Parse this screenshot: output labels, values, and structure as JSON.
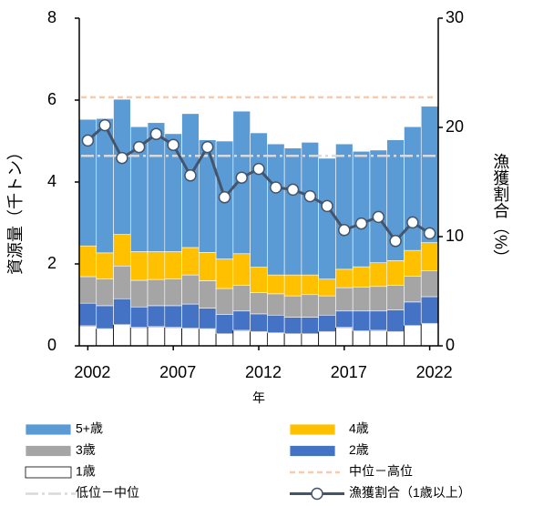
{
  "chart_data": {
    "type": "bar",
    "x_label": "年",
    "y_label": "資源量（千トン）",
    "y2_label": "漁獲割合（%）",
    "categories": [
      "2002",
      null,
      null,
      null,
      null,
      "2007",
      null,
      null,
      null,
      null,
      "2012",
      null,
      null,
      null,
      null,
      "2017",
      null,
      null,
      null,
      null,
      "2022"
    ],
    "ylim": [
      0,
      8
    ],
    "yticks": [
      0,
      2,
      4,
      6,
      8
    ],
    "y2lim": [
      0,
      30
    ],
    "y2ticks": [
      0,
      10,
      20,
      30
    ],
    "series": [
      {
        "name": "5+歳",
        "type": "bar",
        "color": "#5b9bd5",
        "values": [
          3.09,
          3.28,
          3.3,
          3.05,
          3.15,
          2.88,
          3.27,
          2.75,
          2.88,
          3.48,
          3.28,
          3.2,
          3.1,
          3.24,
          2.95,
          3.06,
          2.82,
          2.75,
          2.95,
          3.02,
          3.33
        ]
      },
      {
        "name": "4歳",
        "type": "bar",
        "color": "#ffc000",
        "values": [
          0.75,
          0.64,
          0.77,
          0.7,
          0.68,
          0.67,
          0.67,
          0.69,
          0.72,
          0.77,
          0.62,
          0.46,
          0.51,
          0.48,
          0.41,
          0.45,
          0.5,
          0.58,
          0.6,
          0.63,
          0.69
        ]
      },
      {
        "name": "3歳",
        "type": "bar",
        "color": "#a5a5a5",
        "values": [
          0.65,
          0.65,
          0.8,
          0.65,
          0.64,
          0.65,
          0.71,
          0.67,
          0.63,
          0.63,
          0.52,
          0.52,
          0.52,
          0.55,
          0.47,
          0.57,
          0.58,
          0.6,
          0.6,
          0.63,
          0.63
        ]
      },
      {
        "name": "2歳",
        "type": "bar",
        "color": "#4472c4",
        "values": [
          0.55,
          0.56,
          0.63,
          0.5,
          0.51,
          0.53,
          0.59,
          0.5,
          0.47,
          0.47,
          0.43,
          0.43,
          0.4,
          0.4,
          0.4,
          0.4,
          0.48,
          0.47,
          0.53,
          0.57,
          0.65
        ]
      },
      {
        "name": "1歳",
        "type": "bar",
        "color": "#ffffff",
        "values": [
          0.49,
          0.42,
          0.52,
          0.45,
          0.47,
          0.45,
          0.43,
          0.42,
          0.3,
          0.38,
          0.35,
          0.32,
          0.3,
          0.3,
          0.35,
          0.45,
          0.37,
          0.38,
          0.35,
          0.5,
          0.55
        ]
      },
      {
        "name": "漁獲割合（1歳以上）",
        "type": "line",
        "axis": "y2",
        "color": "#44546a",
        "values": [
          18.8,
          20.2,
          17.2,
          18.2,
          19.4,
          18.4,
          15.6,
          18.2,
          13.6,
          15.4,
          16.2,
          14.5,
          14.3,
          13.7,
          12.8,
          10.6,
          11.2,
          11.8,
          9.6,
          11.3,
          10.3
        ]
      }
    ],
    "reference_lines": [
      {
        "name": "中位－高位",
        "value": 6.07,
        "color": "#f8cbad",
        "dash": "6 4"
      },
      {
        "name": "低位－中位",
        "value": 4.64,
        "color": "#d9d9d9",
        "dash": "14 4 3 4"
      }
    ]
  }
}
